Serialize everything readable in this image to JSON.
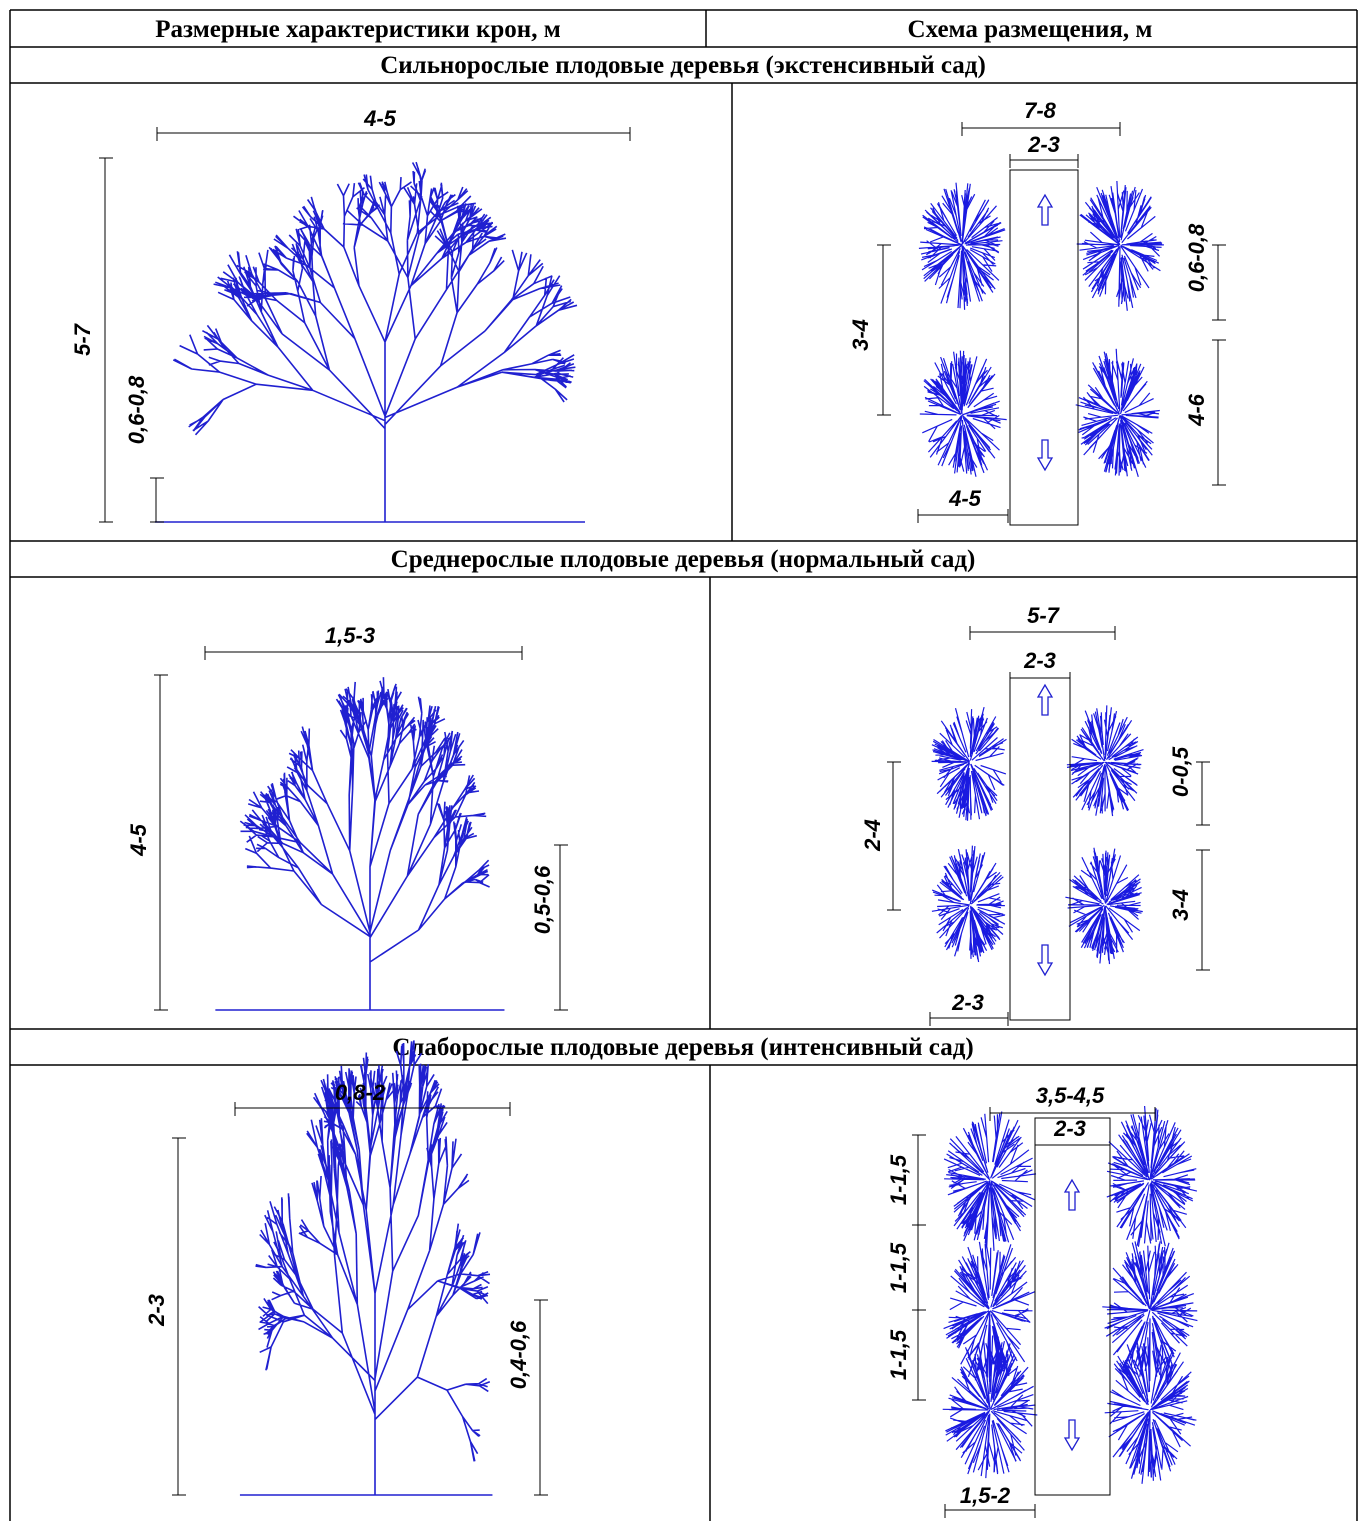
{
  "header": [
    "Размерные характеристики крон, м",
    "Схема размещения, м"
  ],
  "sections": [
    {
      "title": "Сильнорослые плодовые деревья (экстенсивный сад)",
      "crown_labels": [
        "4-5",
        "5-7",
        "0,6-0,8"
      ],
      "layout_labels": [
        "7-8",
        "2-3",
        "0,6-0,8",
        "3-4",
        "4-6",
        "4-5"
      ]
    },
    {
      "title": "Среднерослые плодовые деревья (нормальный сад)",
      "crown_labels": [
        "1,5-3",
        "4-5",
        "0,5-0,6"
      ],
      "layout_labels": [
        "5-7",
        "2-3",
        "0-0,5",
        "2-4",
        "3-4",
        "2-3"
      ]
    },
    {
      "title": "Слаборослые плодовые деревья (интенсивный сад)",
      "crown_labels": [
        "0,8-2",
        "2-3",
        "0,4-0,6"
      ],
      "layout_labels": [
        "3,5-4,5",
        "2-3",
        "1-1,5",
        "1-1,5",
        "1-1,5",
        "1,5-2"
      ]
    }
  ]
}
